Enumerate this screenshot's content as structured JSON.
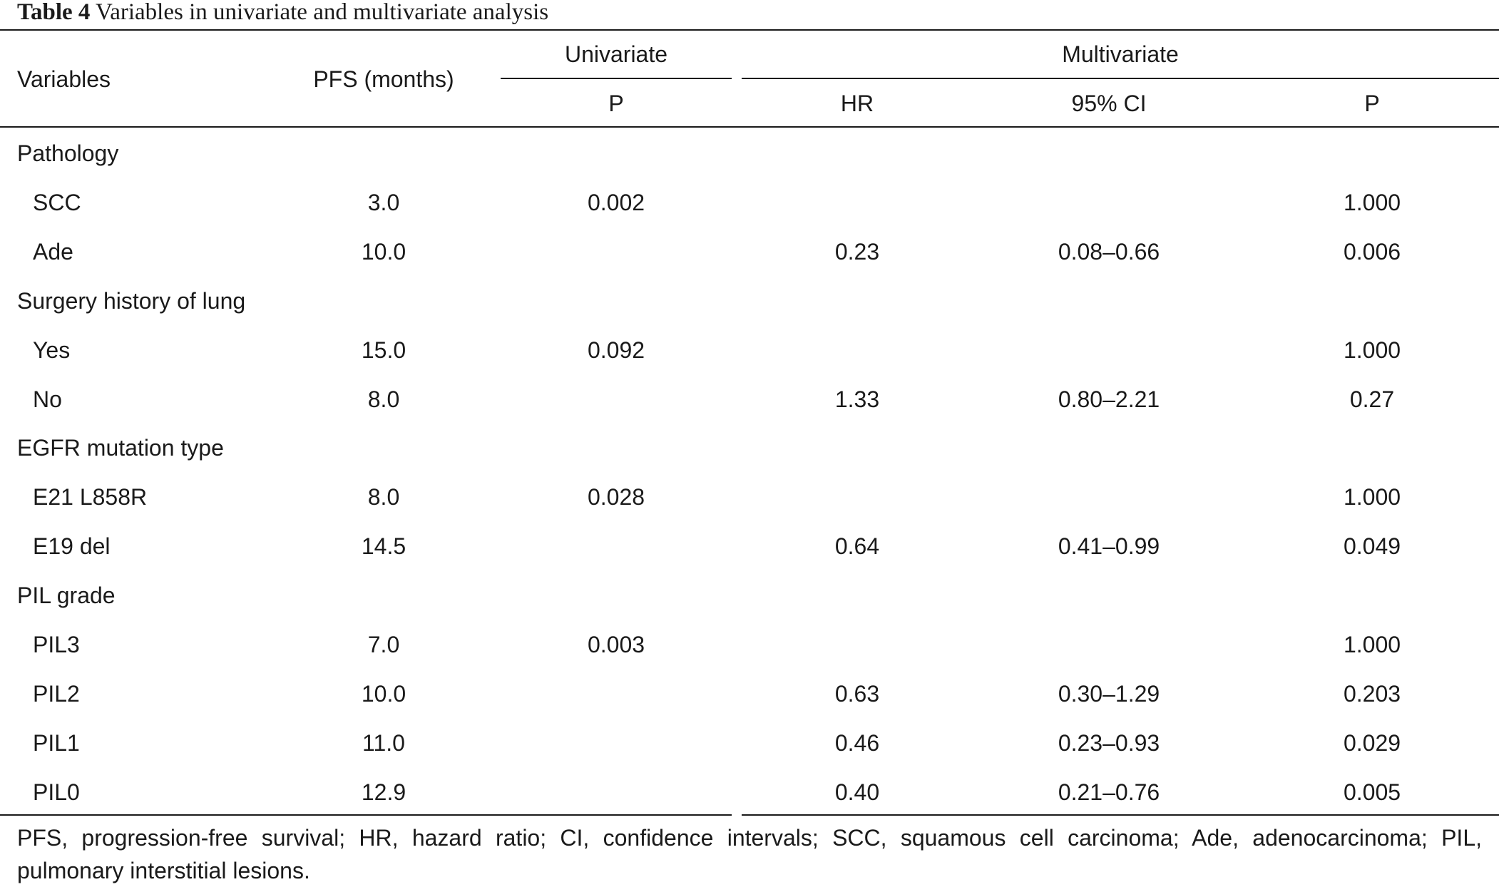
{
  "caption": {
    "label": "Table 4",
    "text": " Variables in univariate and multivariate analysis"
  },
  "headers": {
    "variables": "Variables",
    "pfs": "PFS (months)",
    "univariate": "Univariate",
    "multivariate": "Multivariate",
    "uni_p": "P",
    "hr": "HR",
    "ci": "95% CI",
    "multi_p": "P"
  },
  "rows": [
    {
      "label": "Pathology",
      "group": true,
      "pfs": "",
      "uni_p": "",
      "hr": "",
      "ci": "",
      "multi_p": ""
    },
    {
      "label": "SCC",
      "group": false,
      "pfs": "3.0",
      "uni_p": "0.002",
      "hr": "",
      "ci": "",
      "multi_p": "1.000"
    },
    {
      "label": "Ade",
      "group": false,
      "pfs": "10.0",
      "uni_p": "",
      "hr": "0.23",
      "ci": "0.08–0.66",
      "multi_p": "0.006"
    },
    {
      "label": "Surgery history of lung",
      "group": true,
      "pfs": "",
      "uni_p": "",
      "hr": "",
      "ci": "",
      "multi_p": ""
    },
    {
      "label": "Yes",
      "group": false,
      "pfs": "15.0",
      "uni_p": "0.092",
      "hr": "",
      "ci": "",
      "multi_p": "1.000"
    },
    {
      "label": "No",
      "group": false,
      "pfs": "8.0",
      "uni_p": "",
      "hr": "1.33",
      "ci": "0.80–2.21",
      "multi_p": "0.27"
    },
    {
      "label": "EGFR mutation type",
      "group": true,
      "pfs": "",
      "uni_p": "",
      "hr": "",
      "ci": "",
      "multi_p": ""
    },
    {
      "label": "E21 L858R",
      "group": false,
      "pfs": "8.0",
      "uni_p": "0.028",
      "hr": "",
      "ci": "",
      "multi_p": "1.000"
    },
    {
      "label": "E19 del",
      "group": false,
      "pfs": "14.5",
      "uni_p": "",
      "hr": "0.64",
      "ci": "0.41–0.99",
      "multi_p": "0.049"
    },
    {
      "label": "PIL grade",
      "group": true,
      "pfs": "",
      "uni_p": "",
      "hr": "",
      "ci": "",
      "multi_p": ""
    },
    {
      "label": "PIL3",
      "group": false,
      "pfs": "7.0",
      "uni_p": "0.003",
      "hr": "",
      "ci": "",
      "multi_p": "1.000"
    },
    {
      "label": "PIL2",
      "group": false,
      "pfs": "10.0",
      "uni_p": "",
      "hr": "0.63",
      "ci": "0.30–1.29",
      "multi_p": "0.203"
    },
    {
      "label": "PIL1",
      "group": false,
      "pfs": "11.0",
      "uni_p": "",
      "hr": "0.46",
      "ci": "0.23–0.93",
      "multi_p": "0.029"
    },
    {
      "label": "PIL0",
      "group": false,
      "pfs": "12.9",
      "uni_p": "",
      "hr": "0.40",
      "ci": "0.21–0.76",
      "multi_p": "0.005"
    }
  ],
  "footnote": "PFS, progression-free survival; HR, hazard ratio; CI, confidence intervals; SCC, squamous cell carcinoma; Ade, adenocarcinoma; PIL, pulmonary interstitial lesions."
}
